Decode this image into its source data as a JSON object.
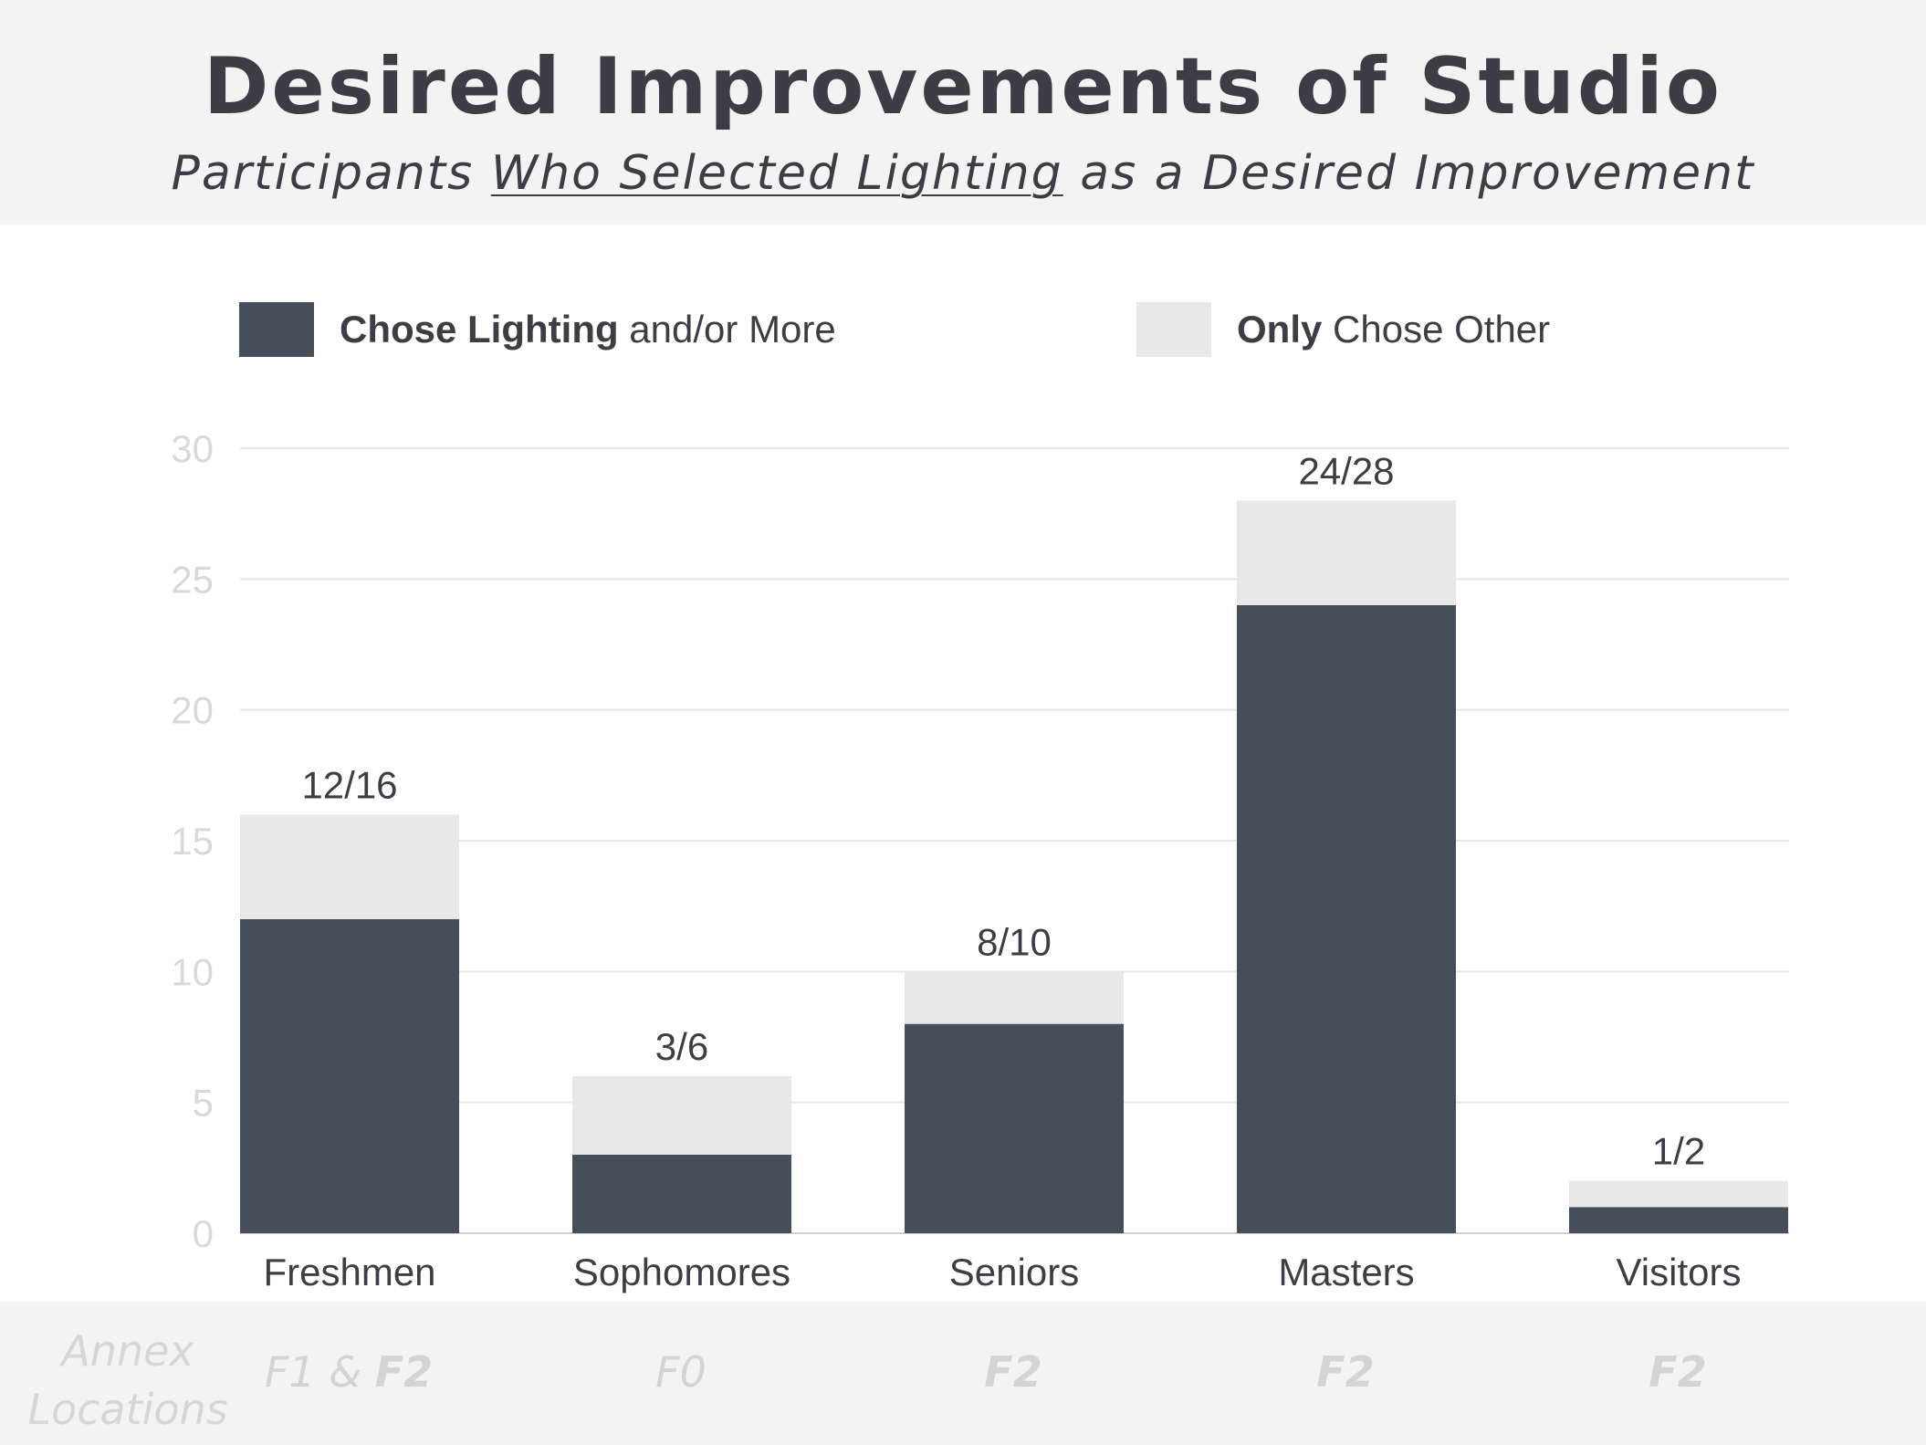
{
  "header": {
    "title": "Desired Improvements of Studio",
    "subtitle_prefix": "Participants ",
    "subtitle_underlined": "Who Selected Lighting",
    "subtitle_suffix": " as a Desired Improvement"
  },
  "legend": {
    "lighting": {
      "bold": "Chose Lighting",
      "rest": " and/or More"
    },
    "other": {
      "bold": "Only",
      "rest": " Chose Other"
    }
  },
  "colors": {
    "lighting": "#454e59",
    "other": "#e8e8e8",
    "axis_text": "#d9d9d9",
    "grid": "#e6e6e6",
    "text": "#3d3d45"
  },
  "chart_data": {
    "type": "bar",
    "stacked": true,
    "title": "Desired Improvements of Studio",
    "subtitle": "Participants Who Selected Lighting as a Desired Improvement",
    "categories": [
      "Freshmen",
      "Sophomores",
      "Seniors",
      "Masters",
      "Visitors"
    ],
    "series": [
      {
        "name": "Chose Lighting and/or More",
        "values": [
          12,
          3,
          8,
          24,
          1
        ]
      },
      {
        "name": "Only Chose Other",
        "values": [
          4,
          3,
          2,
          4,
          1
        ]
      }
    ],
    "data_labels": [
      "12/16",
      "3/6",
      "8/10",
      "24/28",
      "1/2"
    ],
    "ylim": [
      0,
      30
    ],
    "yticks": [
      0,
      5,
      10,
      15,
      20,
      25,
      30
    ],
    "grid": true,
    "legend_position": "top"
  },
  "footer": {
    "label_line1": "Annex",
    "label_line2": "Locations",
    "locations": [
      {
        "normal": "F1 & ",
        "bold": "F2"
      },
      {
        "normal": "F0",
        "bold": ""
      },
      {
        "normal": "",
        "bold": "F2"
      },
      {
        "normal": "",
        "bold": "F2"
      },
      {
        "normal": "",
        "bold": "F2"
      }
    ]
  }
}
